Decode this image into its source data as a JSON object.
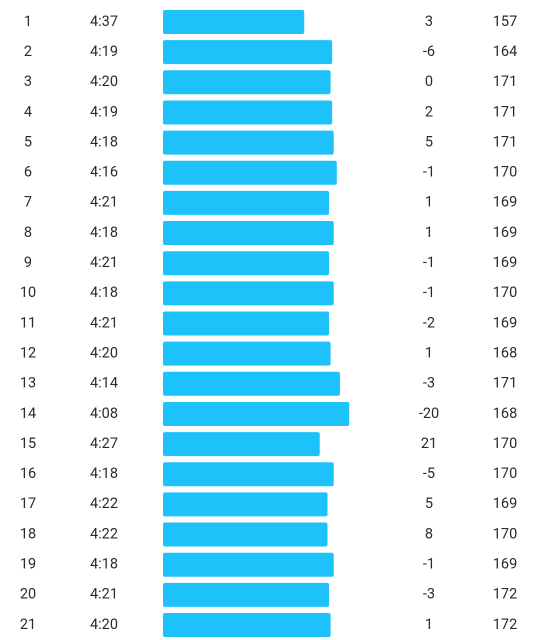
{
  "table": {
    "rows": [
      [
        1,
        "4:37",
        3,
        157
      ],
      [
        2,
        "4:19",
        -6,
        164
      ],
      [
        3,
        "4:20",
        0,
        171
      ],
      [
        4,
        "4:19",
        2,
        171
      ],
      [
        5,
        "4:18",
        5,
        171
      ],
      [
        6,
        "4:16",
        -1,
        170
      ],
      [
        7,
        "4:21",
        1,
        169
      ],
      [
        8,
        "4:18",
        1,
        169
      ],
      [
        9,
        "4:21",
        -1,
        169
      ],
      [
        10,
        "4:18",
        -1,
        170
      ],
      [
        11,
        "4:21",
        -2,
        169
      ],
      [
        12,
        "4:20",
        1,
        168
      ],
      [
        13,
        "4:14",
        -3,
        171
      ],
      [
        14,
        "4:08",
        -20,
        168
      ],
      [
        15,
        "4:27",
        21,
        170
      ],
      [
        16,
        "4:18",
        -5,
        170
      ],
      [
        17,
        "4:22",
        5,
        169
      ],
      [
        18,
        "4:22",
        8,
        170
      ],
      [
        19,
        "4:18",
        -1,
        169
      ],
      [
        20,
        "4:21",
        -3,
        172
      ],
      [
        21,
        "4:20",
        1,
        172
      ]
    ]
  }
}
